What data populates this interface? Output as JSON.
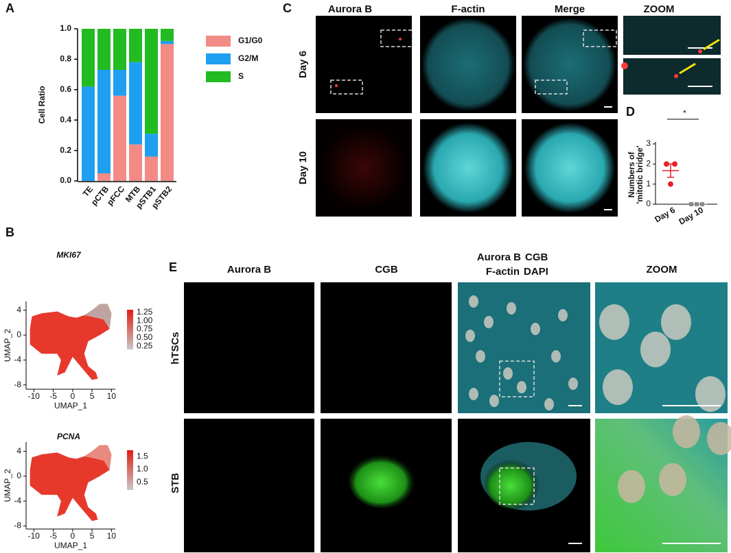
{
  "panel_labels": [
    "A",
    "B",
    "C",
    "D",
    "E"
  ],
  "chart_data": [
    {
      "type": "bar",
      "stacked": true,
      "ylabel": "Cell Ratio",
      "categories": [
        "TE",
        "pCTB",
        "pFCC",
        "MTB",
        "pSTB1",
        "pSTB2"
      ],
      "series": [
        {
          "name": "G1/G0",
          "color": "#f28b86",
          "values": [
            0,
            0.05,
            0.56,
            0.24,
            0.16,
            0.9
          ]
        },
        {
          "name": "G2/M",
          "color": "#1e9ff0",
          "values": [
            0.62,
            0.68,
            0.17,
            0.54,
            0.15,
            0.02
          ]
        },
        {
          "name": "S",
          "color": "#22bb22",
          "values": [
            0.38,
            0.27,
            0.27,
            0.22,
            0.69,
            0.08
          ]
        }
      ],
      "ylim": [
        0,
        1
      ],
      "yticks": [
        {
          "value": 0,
          "label": "0.0"
        },
        0.2,
        0.4,
        0.6,
        0.8,
        {
          "value": 1,
          "label": "1.0"
        }
      ],
      "legend": "right"
    },
    {
      "type": "dot",
      "ylabel": [
        "Numbers of",
        "'mitotic bridge'"
      ],
      "categories": [
        "Day 6",
        "Day 10"
      ],
      "points": [
        [
          2,
          2,
          1
        ],
        [
          0,
          0,
          0
        ]
      ],
      "colors": [
        "#e8202a",
        "#8a8a8a"
      ],
      "means": [
        1.67,
        0
      ],
      "errors": [
        0.33,
        0
      ],
      "significance": "*",
      "ylim": [
        0,
        3
      ],
      "yticks": [
        0,
        1,
        2,
        3
      ]
    }
  ],
  "umap": [
    {
      "gene": "MKI67",
      "xlabel": "UMAP_1",
      "ylabel": "UMAP_2",
      "xlim": [
        -12,
        11
      ],
      "ylim": [
        -8.7,
        5.4
      ],
      "xticks": [
        -10,
        -5,
        0,
        5,
        10
      ],
      "yticks": [
        -8,
        -4,
        0,
        4
      ],
      "colorbar_lim": [
        0.15,
        1.33
      ],
      "colorbar_ticks": [
        1.25,
        {
          "value": 1,
          "label": "1.00"
        },
        0.75,
        {
          "value": 0.5,
          "label": "0.50"
        },
        0.25
      ]
    },
    {
      "gene": "PCNA",
      "xlabel": "UMAP_1",
      "ylabel": "UMAP_2",
      "xlim": [
        -12,
        11
      ],
      "ylim": [
        -8.5,
        5.5
      ],
      "xticks": [
        -10,
        -5,
        0,
        5,
        10
      ],
      "yticks": [
        -8,
        -4,
        0,
        4
      ],
      "colorbar_lim": [
        0.2,
        1.75
      ],
      "colorbar_ticks": [
        1.5,
        {
          "value": 1,
          "label": "1.0"
        },
        0.5
      ]
    }
  ],
  "panel_c": {
    "columns": [
      "Aurora B",
      "F-actin",
      "Merge",
      "ZOOM"
    ],
    "rows": [
      "Day 6",
      "Day 10"
    ]
  },
  "panel_e": {
    "columns": [
      "Aurora B",
      "CGB",
      "ZOOM"
    ],
    "merge_labels": [
      "Aurora B",
      "CGB",
      "F-actin",
      "DAPI"
    ],
    "rows": [
      "hTSCs",
      "STB"
    ]
  }
}
